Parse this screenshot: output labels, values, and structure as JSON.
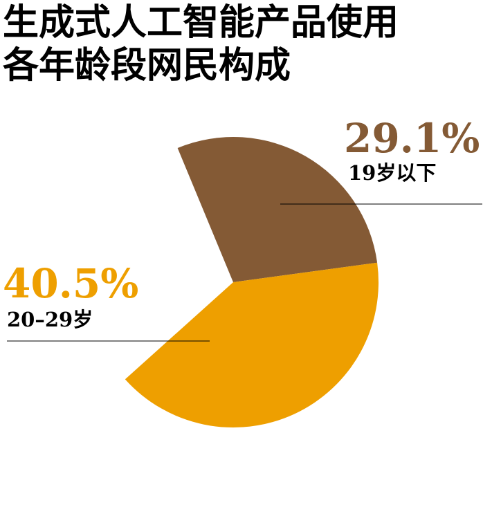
{
  "chart_data": {
    "type": "pie",
    "title": "生成式人工智能产品使用各年龄段网民构成",
    "categories": [
      "19岁以下",
      "20–29岁"
    ],
    "values": [
      29.1,
      40.5
    ],
    "value_labels": [
      "29.1%",
      "40.5%"
    ],
    "colors": [
      "#845a35",
      "#ee9f00"
    ]
  }
}
